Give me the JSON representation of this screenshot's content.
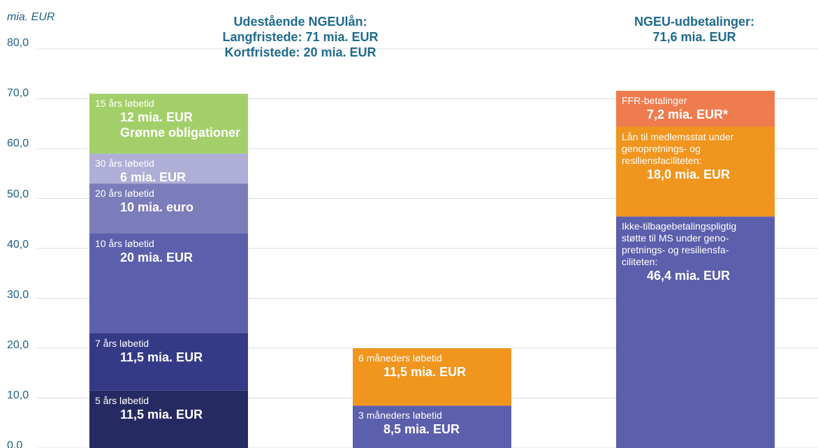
{
  "chart_data": {
    "type": "stacked_bar",
    "ylabel": "mia. EUR",
    "annotations": [
      "Udestående NGEUlån:\nLangfristede: 71 mia. EUR\nKortfristede: 20 mia. EUR",
      "NGEU-udbetalinger:\n71,6 mia. EUR"
    ],
    "categories": [
      null,
      null,
      null
    ],
    "ylim": [
      0,
      80
    ],
    "yticks": [
      {
        "value": 0,
        "label": "0,0"
      },
      {
        "value": 10,
        "label": "10,0"
      },
      {
        "value": 20,
        "label": "20,0"
      },
      {
        "value": 30,
        "label": "30,0"
      },
      {
        "value": 40,
        "label": "40,0"
      },
      {
        "value": 50,
        "label": "50,0"
      },
      {
        "value": 60,
        "label": "60,0"
      },
      {
        "value": 70,
        "label": "70,0"
      },
      {
        "value": 80,
        "label": "80,0"
      }
    ],
    "grid": true,
    "series": [
      {
        "name": "5 års løbetid",
        "color": "#262a62",
        "values": [
          11.5,
          null,
          null
        ],
        "value_labels": [
          "11,5 mia. EUR",
          null,
          null
        ]
      },
      {
        "name": "7 års løbetid",
        "color": "#353a87",
        "values": [
          11.5,
          null,
          null
        ],
        "value_labels": [
          "11,5 mia. EUR",
          null,
          null
        ]
      },
      {
        "name": "10 års løbetid",
        "color": "#5c5fac",
        "values": [
          20,
          null,
          null
        ],
        "value_labels": [
          "20 mia. EUR",
          null,
          null
        ]
      },
      {
        "name": "20 års løbetid",
        "color": "#7b7cba",
        "values": [
          10,
          null,
          null
        ],
        "value_labels": [
          "10 mia. euro",
          null,
          null
        ]
      },
      {
        "name": "30 års løbetid",
        "color": "#aeaed6",
        "values": [
          6,
          null,
          null
        ],
        "value_labels": [
          "6 mia. EUR",
          null,
          null
        ]
      },
      {
        "name": "15 års løbetid",
        "color": "#a3cf6a",
        "values": [
          12,
          null,
          null
        ],
        "value_labels": [
          "12 mia. EUR",
          null,
          null
        ],
        "sublabel": "Grønne obligationer"
      },
      {
        "name": "3 måneders løbetid",
        "color": "#5c5fac",
        "values": [
          null,
          8.5,
          null
        ],
        "value_labels": [
          null,
          "8,5 mia. EUR",
          null
        ]
      },
      {
        "name": "6 måneders løbetid",
        "color": "#f0951e",
        "values": [
          null,
          11.5,
          null
        ],
        "value_labels": [
          null,
          "11,5 mia. EUR",
          null
        ]
      },
      {
        "name": "Ikke-tilbagebetalingspligtig\nstøtte til MS under geno-\npretnings- og resiliensfa-\nciliteten:",
        "color": "#5c5fac",
        "values": [
          null,
          null,
          46.4
        ],
        "value_labels": [
          null,
          null,
          "46,4 mia. EUR"
        ]
      },
      {
        "name": "Lån til medlemsstat under\ngenopretnings- og\nresiliensfaciliteten:",
        "color": "#f0951e",
        "values": [
          null,
          null,
          18.0
        ],
        "value_labels": [
          null,
          null,
          "18,0 mia. EUR"
        ]
      },
      {
        "name": "FFR-betalinger",
        "color": "#ef7c4f",
        "values": [
          null,
          null,
          7.2
        ],
        "value_labels": [
          null,
          null,
          "7,2 mia. EUR*"
        ]
      }
    ]
  }
}
